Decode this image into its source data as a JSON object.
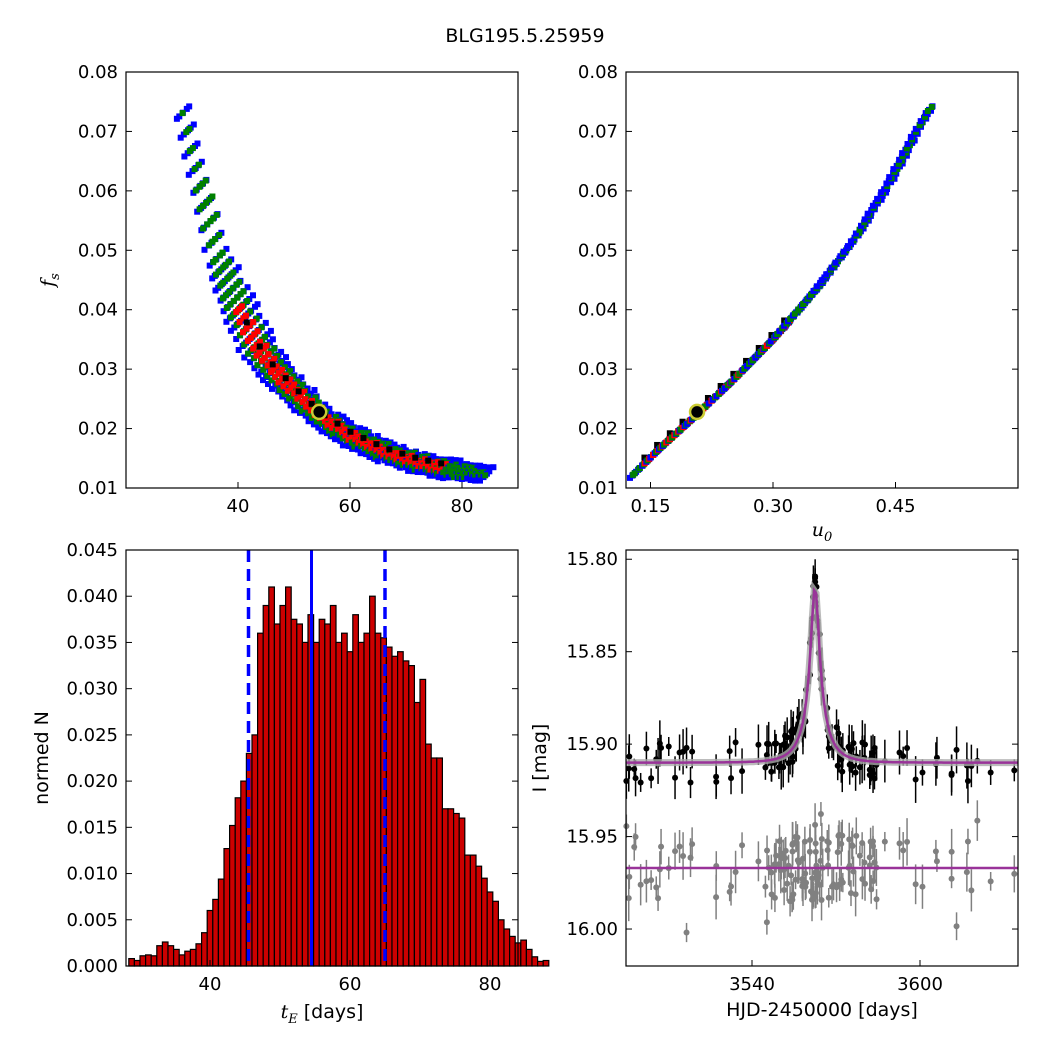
{
  "title": "BLG195.5.25959",
  "chart_data": [
    {
      "type": "heatmap",
      "panel": "tE-vs-fs",
      "ylabel_symbol": "f",
      "ylabel_sub": "s",
      "xlim": [
        20,
        90
      ],
      "ylim": [
        0.01,
        0.08
      ],
      "xticks": [
        "40",
        "60",
        "80"
      ],
      "yticks": [
        "0.01",
        "0.02",
        "0.03",
        "0.04",
        "0.05",
        "0.06",
        "0.07",
        "0.08"
      ],
      "confidence_colors": {
        "outer": "#0000ff",
        "middle": "#008000",
        "inner": "#ff0000",
        "best": "#000000"
      },
      "best_fit": {
        "x": 54.5,
        "y": 0.0228
      },
      "ridge": [
        {
          "x": 30.0,
          "y": 0.074,
          "w": 2.5
        },
        {
          "x": 33.0,
          "y": 0.062,
          "w": 3.0
        },
        {
          "x": 36.0,
          "y": 0.05,
          "w": 3.5
        },
        {
          "x": 38.5,
          "y": 0.044,
          "w": 4.0
        },
        {
          "x": 40.0,
          "y": 0.041,
          "w": 4.5
        },
        {
          "x": 43.0,
          "y": 0.035,
          "w": 4.5
        },
        {
          "x": 46.0,
          "y": 0.031,
          "w": 4.0
        },
        {
          "x": 50.0,
          "y": 0.027,
          "w": 3.5
        },
        {
          "x": 55.0,
          "y": 0.0225,
          "w": 3.0
        },
        {
          "x": 60.0,
          "y": 0.0195,
          "w": 3.0
        },
        {
          "x": 66.0,
          "y": 0.0168,
          "w": 3.0
        },
        {
          "x": 72.0,
          "y": 0.015,
          "w": 3.0
        },
        {
          "x": 78.0,
          "y": 0.0138,
          "w": 3.0
        },
        {
          "x": 84.0,
          "y": 0.013,
          "w": 2.5
        }
      ],
      "inner_range": [
        39.5,
        77.0
      ],
      "middle_range": [
        33.0,
        81.5
      ]
    },
    {
      "type": "heatmap",
      "panel": "u0-vs-fs",
      "xlabel_symbol": "u",
      "xlabel_sub": "0",
      "xlim": [
        0.12,
        0.6
      ],
      "ylim": [
        0.01,
        0.08
      ],
      "xticks": [
        "0.15",
        "0.30",
        "0.45"
      ],
      "yticks": [
        "0.01",
        "0.02",
        "0.03",
        "0.04",
        "0.05",
        "0.06",
        "0.07",
        "0.08"
      ],
      "best_fit": {
        "x": 0.207,
        "y": 0.0228
      },
      "ridge": [
        {
          "x": 0.127,
          "y": 0.013,
          "w": 0.01
        },
        {
          "x": 0.16,
          "y": 0.0175,
          "w": 0.012
        },
        {
          "x": 0.2,
          "y": 0.0225,
          "w": 0.013
        },
        {
          "x": 0.25,
          "y": 0.029,
          "w": 0.014
        },
        {
          "x": 0.3,
          "y": 0.036,
          "w": 0.015
        },
        {
          "x": 0.35,
          "y": 0.044,
          "w": 0.016
        },
        {
          "x": 0.4,
          "y": 0.053,
          "w": 0.017
        },
        {
          "x": 0.44,
          "y": 0.062,
          "w": 0.017
        },
        {
          "x": 0.475,
          "y": 0.071,
          "w": 0.016
        },
        {
          "x": 0.49,
          "y": 0.0745,
          "w": 0.014
        }
      ],
      "inner_range": [
        0.14,
        0.32
      ],
      "middle_range": [
        0.13,
        0.36
      ]
    },
    {
      "type": "bar",
      "panel": "tE-histogram",
      "xlabel_symbol": "t",
      "xlabel_sub": "E",
      "xlabel_unit": " [days]",
      "ylabel": "normed N",
      "xlim": [
        28,
        84
      ],
      "ylim": [
        0.0,
        0.045
      ],
      "xticks": [
        "40",
        "60",
        "80"
      ],
      "yticks": [
        "0.000",
        "0.005",
        "0.010",
        "0.015",
        "0.020",
        "0.025",
        "0.030",
        "0.035",
        "0.040",
        "0.045"
      ],
      "bin_start": 28.4,
      "bin_width": 0.8,
      "values": [
        0.0008,
        0.0006,
        0.0011,
        0.0012,
        0.0011,
        0.0022,
        0.0026,
        0.0022,
        0.0018,
        0.0012,
        0.0016,
        0.0018,
        0.0024,
        0.0036,
        0.006,
        0.0072,
        0.0094,
        0.0127,
        0.0152,
        0.0182,
        0.02,
        0.023,
        0.025,
        0.036,
        0.039,
        0.041,
        0.037,
        0.039,
        0.041,
        0.0375,
        0.037,
        0.035,
        0.038,
        0.035,
        0.0375,
        0.037,
        0.039,
        0.035,
        0.036,
        0.034,
        0.038,
        0.035,
        0.036,
        0.04,
        0.036,
        0.0355,
        0.0345,
        0.0335,
        0.034,
        0.033,
        0.0325,
        0.0285,
        0.031,
        0.024,
        0.0225,
        0.0225,
        0.017,
        0.017,
        0.0165,
        0.016,
        0.012,
        0.012,
        0.0108,
        0.0095,
        0.008,
        0.007,
        0.005,
        0.004,
        0.0032,
        0.0025,
        0.0028,
        0.0018,
        0.001,
        0.0005,
        0.0006
      ],
      "bar_color": "#cc0000",
      "median": 54.5,
      "lower": 45.5,
      "upper": 65.0,
      "line_color": "#0000ff"
    },
    {
      "type": "scatter",
      "panel": "lightcurve",
      "xlabel": "HJD-2450000 [days]",
      "ylabel": "I [mag]",
      "xlim": [
        3495,
        3635
      ],
      "ylim": [
        16.02,
        15.795
      ],
      "xticks": [
        "3540",
        "3600"
      ],
      "yticks": [
        "15.80",
        "15.85",
        "15.90",
        "15.95",
        "16.00"
      ],
      "model": {
        "t0": 3562.5,
        "tE": 8.0,
        "base": 15.91,
        "peak": 15.815,
        "color": "#993399"
      },
      "residual_level": 15.967,
      "data_color": "#000000",
      "residual_color": "#808080"
    }
  ]
}
